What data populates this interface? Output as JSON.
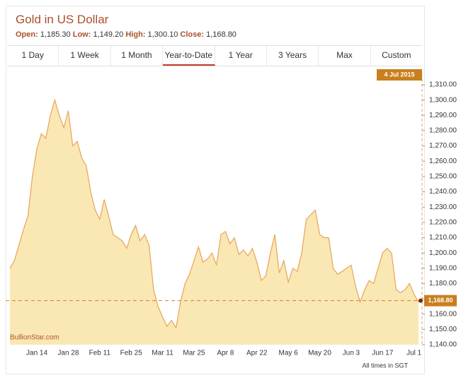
{
  "header": {
    "title": "Gold in US Dollar",
    "stats": [
      {
        "label": "Open:",
        "value": "1,185.30"
      },
      {
        "label": "Low:",
        "value": "1,149.20"
      },
      {
        "label": "High:",
        "value": "1,300.10"
      },
      {
        "label": "Close:",
        "value": "1,168.80"
      }
    ]
  },
  "tabs": {
    "items": [
      "1 Day",
      "1 Week",
      "1 Month",
      "Year-to-Date",
      "1 Year",
      "3 Years",
      "Max",
      "Custom"
    ],
    "active": 3
  },
  "chart_data": {
    "type": "area",
    "categories": [
      null,
      null,
      null,
      null,
      null,
      null,
      "Jan 14",
      null,
      null,
      null,
      null,
      null,
      null,
      "Jan 28",
      null,
      null,
      null,
      null,
      null,
      null,
      "Feb 11",
      null,
      null,
      null,
      null,
      null,
      null,
      "Feb 25",
      null,
      null,
      null,
      null,
      null,
      null,
      "Mar 11",
      null,
      null,
      null,
      null,
      null,
      null,
      "Mar 25",
      null,
      null,
      null,
      null,
      null,
      null,
      "Apr 8",
      null,
      null,
      null,
      null,
      null,
      null,
      "Apr 22",
      null,
      null,
      null,
      null,
      null,
      null,
      "May 6",
      null,
      null,
      null,
      null,
      null,
      null,
      "May 20",
      null,
      null,
      null,
      null,
      null,
      null,
      "Jun 3",
      null,
      null,
      null,
      null,
      null,
      null,
      "Jun 17",
      null,
      null,
      null,
      null,
      null,
      null,
      "Jul 1",
      null
    ],
    "values": [
      1190,
      1195,
      1205,
      1215,
      1224,
      1250,
      1268,
      1278,
      1275,
      1290,
      1300,
      1290,
      1282,
      1293,
      1270,
      1273,
      1262,
      1257,
      1240,
      1228,
      1222,
      1235,
      1224,
      1212,
      1210,
      1208,
      1203,
      1212,
      1218,
      1208,
      1212,
      1205,
      1176,
      1165,
      1158,
      1152,
      1156,
      1151,
      1168,
      1180,
      1186,
      1195,
      1204,
      1194,
      1196,
      1200,
      1192,
      1212,
      1214,
      1206,
      1210,
      1199,
      1202,
      1198,
      1203,
      1194,
      1182,
      1185,
      1200,
      1212,
      1187,
      1195,
      1181,
      1190,
      1188,
      1200,
      1222,
      1225,
      1228,
      1212,
      1210,
      1210,
      1190,
      1186,
      1188,
      1190,
      1192,
      1178,
      1168,
      1176,
      1182,
      1180,
      1190,
      1200,
      1203,
      1200,
      1176,
      1174,
      1176,
      1180,
      1173,
      1168
    ],
    "color": "#e9a457",
    "fill": "#f9e7b4",
    "ylim": [
      1140,
      1310
    ],
    "yticks": [
      {
        "value": 1140,
        "label": "1,140.00"
      },
      {
        "value": 1150,
        "label": "1,150.00"
      },
      {
        "value": 1160,
        "label": "1,160.00"
      },
      {
        "value": 1170,
        "label": "1,170.00"
      },
      {
        "value": 1180,
        "label": "1,180.00"
      },
      {
        "value": 1190,
        "label": "1,190.00"
      },
      {
        "value": 1200,
        "label": "1,200.00"
      },
      {
        "value": 1210,
        "label": "1,210.00"
      },
      {
        "value": 1220,
        "label": "1,220.00"
      },
      {
        "value": 1230,
        "label": "1,230.00"
      },
      {
        "value": 1240,
        "label": "1,240.00"
      },
      {
        "value": 1250,
        "label": "1,250.00"
      },
      {
        "value": 1260,
        "label": "1,260.00"
      },
      {
        "value": 1270,
        "label": "1,270.00"
      },
      {
        "value": 1280,
        "label": "1,280.00"
      },
      {
        "value": 1290,
        "label": "1,290.00"
      },
      {
        "value": 1300,
        "label": "1,300.00"
      },
      {
        "value": 1310,
        "label": "1,310.00"
      }
    ],
    "close": {
      "value": 1168.8,
      "label": "1,168.80"
    },
    "cursor_label": "4 Jul 2015",
    "watermark": "BullionStar.com",
    "note": "All times in SGT"
  }
}
